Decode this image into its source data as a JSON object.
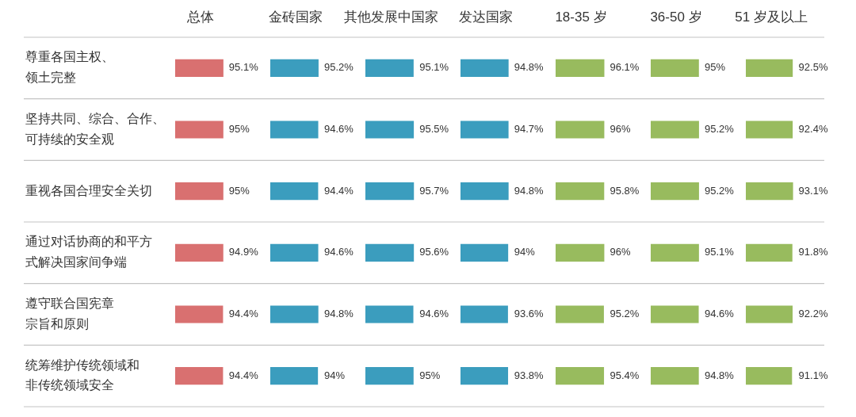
{
  "chart_data": [
    {
      "type": "bar",
      "orientation": "horizontal",
      "title": "总体",
      "categories": [
        "尊重各国主权、领土完整",
        "坚持共同、综合、合作、可持续的安全观",
        "重视各国合理安全关切",
        "通过对话协商的和平方式解决国家间争端",
        "遵守联合国宪章宗旨和原则",
        "统筹维护传统领域和非传统领域安全"
      ],
      "values": [
        95.1,
        95,
        95,
        94.9,
        94.4,
        94.4
      ],
      "value_labels": [
        "95.1%",
        "95%",
        "95%",
        "94.9%",
        "94.4%",
        "94.4%"
      ],
      "color": "#d97070",
      "grid": "y",
      "tick_labels": "y"
    },
    {
      "type": "bar",
      "orientation": "horizontal",
      "title": "金砖国家",
      "values": [
        95.2,
        94.6,
        94.4,
        94.6,
        94.8,
        94
      ],
      "value_labels": [
        "95.2%",
        "94.6%",
        "94.4%",
        "94.6%",
        "94.8%",
        "94%"
      ],
      "color": "#3b9dbe",
      "grid": "y",
      "tick_labels": false
    },
    {
      "type": "bar",
      "orientation": "horizontal",
      "title": "其他发展中国家",
      "values": [
        95.1,
        95.5,
        95.7,
        95.6,
        94.6,
        95
      ],
      "value_labels": [
        "95.1%",
        "95.5%",
        "95.7%",
        "95.6%",
        "94.6%",
        "95%"
      ],
      "color": "#3b9dbe",
      "grid": "y",
      "tick_labels": false
    },
    {
      "type": "bar",
      "orientation": "horizontal",
      "title": "发达国家",
      "values": [
        94.8,
        94.7,
        94.8,
        94,
        93.6,
        93.8
      ],
      "value_labels": [
        "94.8%",
        "94.7%",
        "94.8%",
        "94%",
        "93.6%",
        "93.8%"
      ],
      "color": "#3b9dbe",
      "grid": "y",
      "tick_labels": false
    },
    {
      "type": "bar",
      "orientation": "horizontal",
      "title": "18-35 岁",
      "values": [
        96.1,
        96,
        95.8,
        96,
        95.2,
        95.4
      ],
      "value_labels": [
        "96.1%",
        "96%",
        "95.8%",
        "96%",
        "95.2%",
        "95.4%"
      ],
      "color": "#98bb5e",
      "grid": "y",
      "tick_labels": false
    },
    {
      "type": "bar",
      "orientation": "horizontal",
      "title": "36-50 岁",
      "values": [
        95,
        95.2,
        95.2,
        95.1,
        94.6,
        94.8
      ],
      "value_labels": [
        "95%",
        "95.2%",
        "95.2%",
        "95.1%",
        "94.6%",
        "94.8%"
      ],
      "color": "#98bb5e",
      "grid": "y",
      "tick_labels": false
    },
    {
      "type": "bar",
      "orientation": "horizontal",
      "title": "51 岁及以上",
      "values": [
        92.5,
        92.4,
        93.1,
        91.8,
        92.2,
        91.1
      ],
      "value_labels": [
        "92.5%",
        "92.4%",
        "93.1%",
        "91.8%",
        "92.2%",
        "91.1%"
      ],
      "color": "#98bb5e",
      "grid": "y",
      "tick_labels": false
    }
  ]
}
